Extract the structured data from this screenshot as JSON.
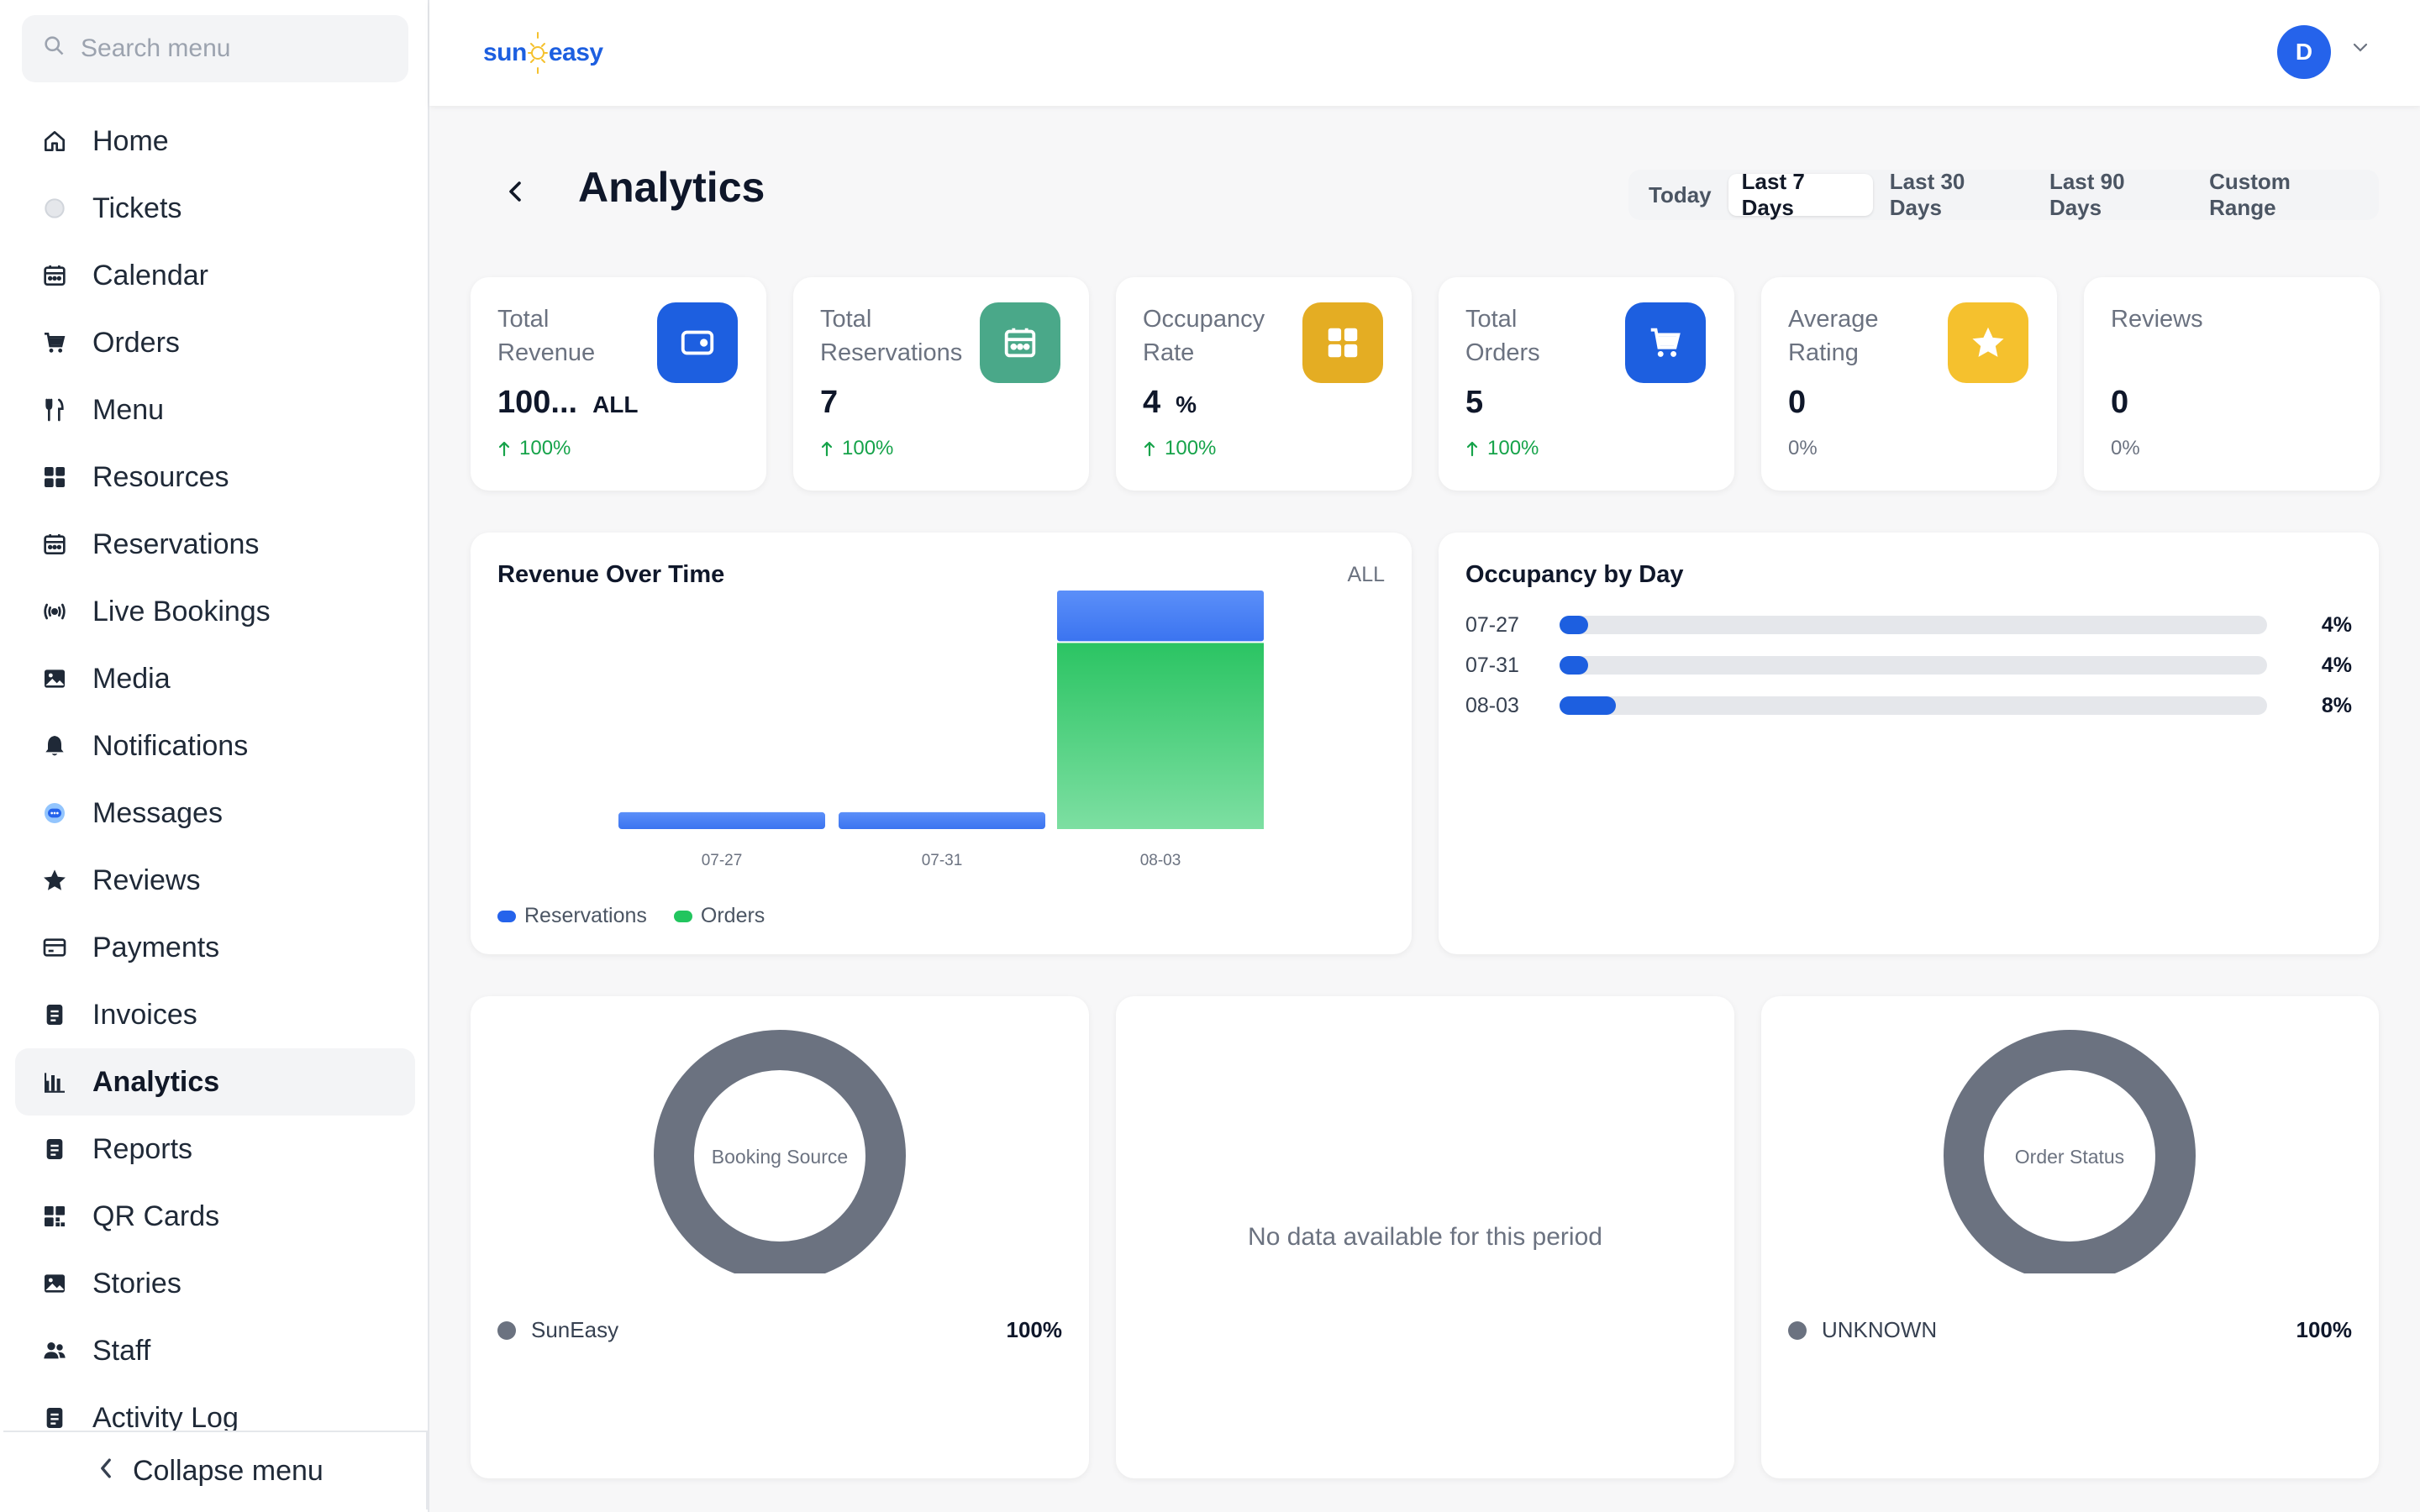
{
  "sidebar": {
    "search_placeholder": "Search menu",
    "items": [
      {
        "label": "Home",
        "icon": "home-icon"
      },
      {
        "label": "Tickets",
        "icon": "ticket-icon"
      },
      {
        "label": "Calendar",
        "icon": "calendar-icon"
      },
      {
        "label": "Orders",
        "icon": "cart-icon"
      },
      {
        "label": "Menu",
        "icon": "utensils-icon"
      },
      {
        "label": "Resources",
        "icon": "grid-icon"
      },
      {
        "label": "Reservations",
        "icon": "calendar-icon"
      },
      {
        "label": "Live Bookings",
        "icon": "broadcast-icon"
      },
      {
        "label": "Media",
        "icon": "image-icon"
      },
      {
        "label": "Notifications",
        "icon": "bell-icon"
      },
      {
        "label": "Messages",
        "icon": "chat-icon"
      },
      {
        "label": "Reviews",
        "icon": "star-icon"
      },
      {
        "label": "Payments",
        "icon": "card-icon"
      },
      {
        "label": "Invoices",
        "icon": "document-icon"
      },
      {
        "label": "Analytics",
        "icon": "bar-chart-icon",
        "active": true
      },
      {
        "label": "Reports",
        "icon": "document-icon"
      },
      {
        "label": "QR Cards",
        "icon": "qr-icon"
      },
      {
        "label": "Stories",
        "icon": "image-icon"
      },
      {
        "label": "Staff",
        "icon": "users-icon"
      },
      {
        "label": "Activity Log",
        "icon": "document-icon"
      }
    ],
    "collapse_label": "Collapse menu"
  },
  "topbar": {
    "logo_left": "sun",
    "logo_right": "easy",
    "avatar_initial": "D"
  },
  "page": {
    "title": "Analytics",
    "ranges": [
      "Today",
      "Last 7 Days",
      "Last 30 Days",
      "Last 90 Days",
      "Custom Range"
    ],
    "active_range": "Last 7 Days"
  },
  "kpis": [
    {
      "label": "Total Revenue",
      "value": "100...",
      "unit": "ALL",
      "change": "100%",
      "trend": "up",
      "icon": "wallet-icon",
      "color": "#1d5fe0"
    },
    {
      "label": "Total Reservations",
      "value": "7",
      "unit": "",
      "change": "100%",
      "trend": "up",
      "icon": "calendar-icon",
      "color": "#4aa889"
    },
    {
      "label": "Occupancy Rate",
      "value": "4",
      "unit": "%",
      "change": "100%",
      "trend": "up",
      "icon": "grid-icon",
      "color": "#e4ad23"
    },
    {
      "label": "Total Orders",
      "value": "5",
      "unit": "",
      "change": "100%",
      "trend": "up",
      "icon": "cart-icon",
      "color": "#1d5fe0"
    },
    {
      "label": "Average Rating",
      "value": "0",
      "unit": "",
      "change": "0%",
      "trend": "none",
      "icon": "star-icon",
      "color": "#f5c12e"
    },
    {
      "label": "Reviews",
      "value": "0",
      "unit": "",
      "change": "0%",
      "trend": "none",
      "icon": "",
      "color": ""
    }
  ],
  "revenue_card": {
    "title": "Revenue Over Time",
    "currency": "ALL",
    "legend": [
      {
        "name": "Reservations",
        "color": "#2563eb"
      },
      {
        "name": "Orders",
        "color": "#22c55e"
      }
    ]
  },
  "occupancy_card": {
    "title": "Occupancy by Day",
    "rows": [
      {
        "date": "07-27",
        "value": 4,
        "label": "4%"
      },
      {
        "date": "07-31",
        "value": 4,
        "label": "4%"
      },
      {
        "date": "08-03",
        "value": 8,
        "label": "8%"
      }
    ]
  },
  "booking_source": {
    "center_label": "Booking Source",
    "legend": [
      {
        "name": "SunEasy",
        "pct": "100%"
      }
    ]
  },
  "middle_card": {
    "message": "No data available for this period"
  },
  "order_status": {
    "center_label": "Order Status",
    "legend": [
      {
        "name": "UNKNOWN",
        "pct": "100%"
      }
    ]
  },
  "chart_data": [
    {
      "type": "bar",
      "stacked": true,
      "categories": [
        "07-27",
        "07-31",
        "08-03"
      ],
      "series": [
        {
          "name": "Reservations",
          "values": [
            1,
            1,
            3
          ]
        },
        {
          "name": "Orders",
          "values": [
            0,
            0,
            11
          ]
        }
      ],
      "ylim": [
        0,
        14
      ]
    },
    {
      "type": "bar",
      "orientation": "horizontal",
      "categories": [
        "07-27",
        "07-31",
        "08-03"
      ],
      "values": [
        4,
        4,
        8
      ],
      "xlim": [
        0,
        100
      ]
    },
    {
      "type": "pie",
      "donut": true,
      "labels": [
        "SunEasy"
      ],
      "values": [
        100
      ]
    },
    {
      "type": "pie",
      "donut": true,
      "labels": [
        "UNKNOWN"
      ],
      "values": [
        100
      ]
    }
  ]
}
